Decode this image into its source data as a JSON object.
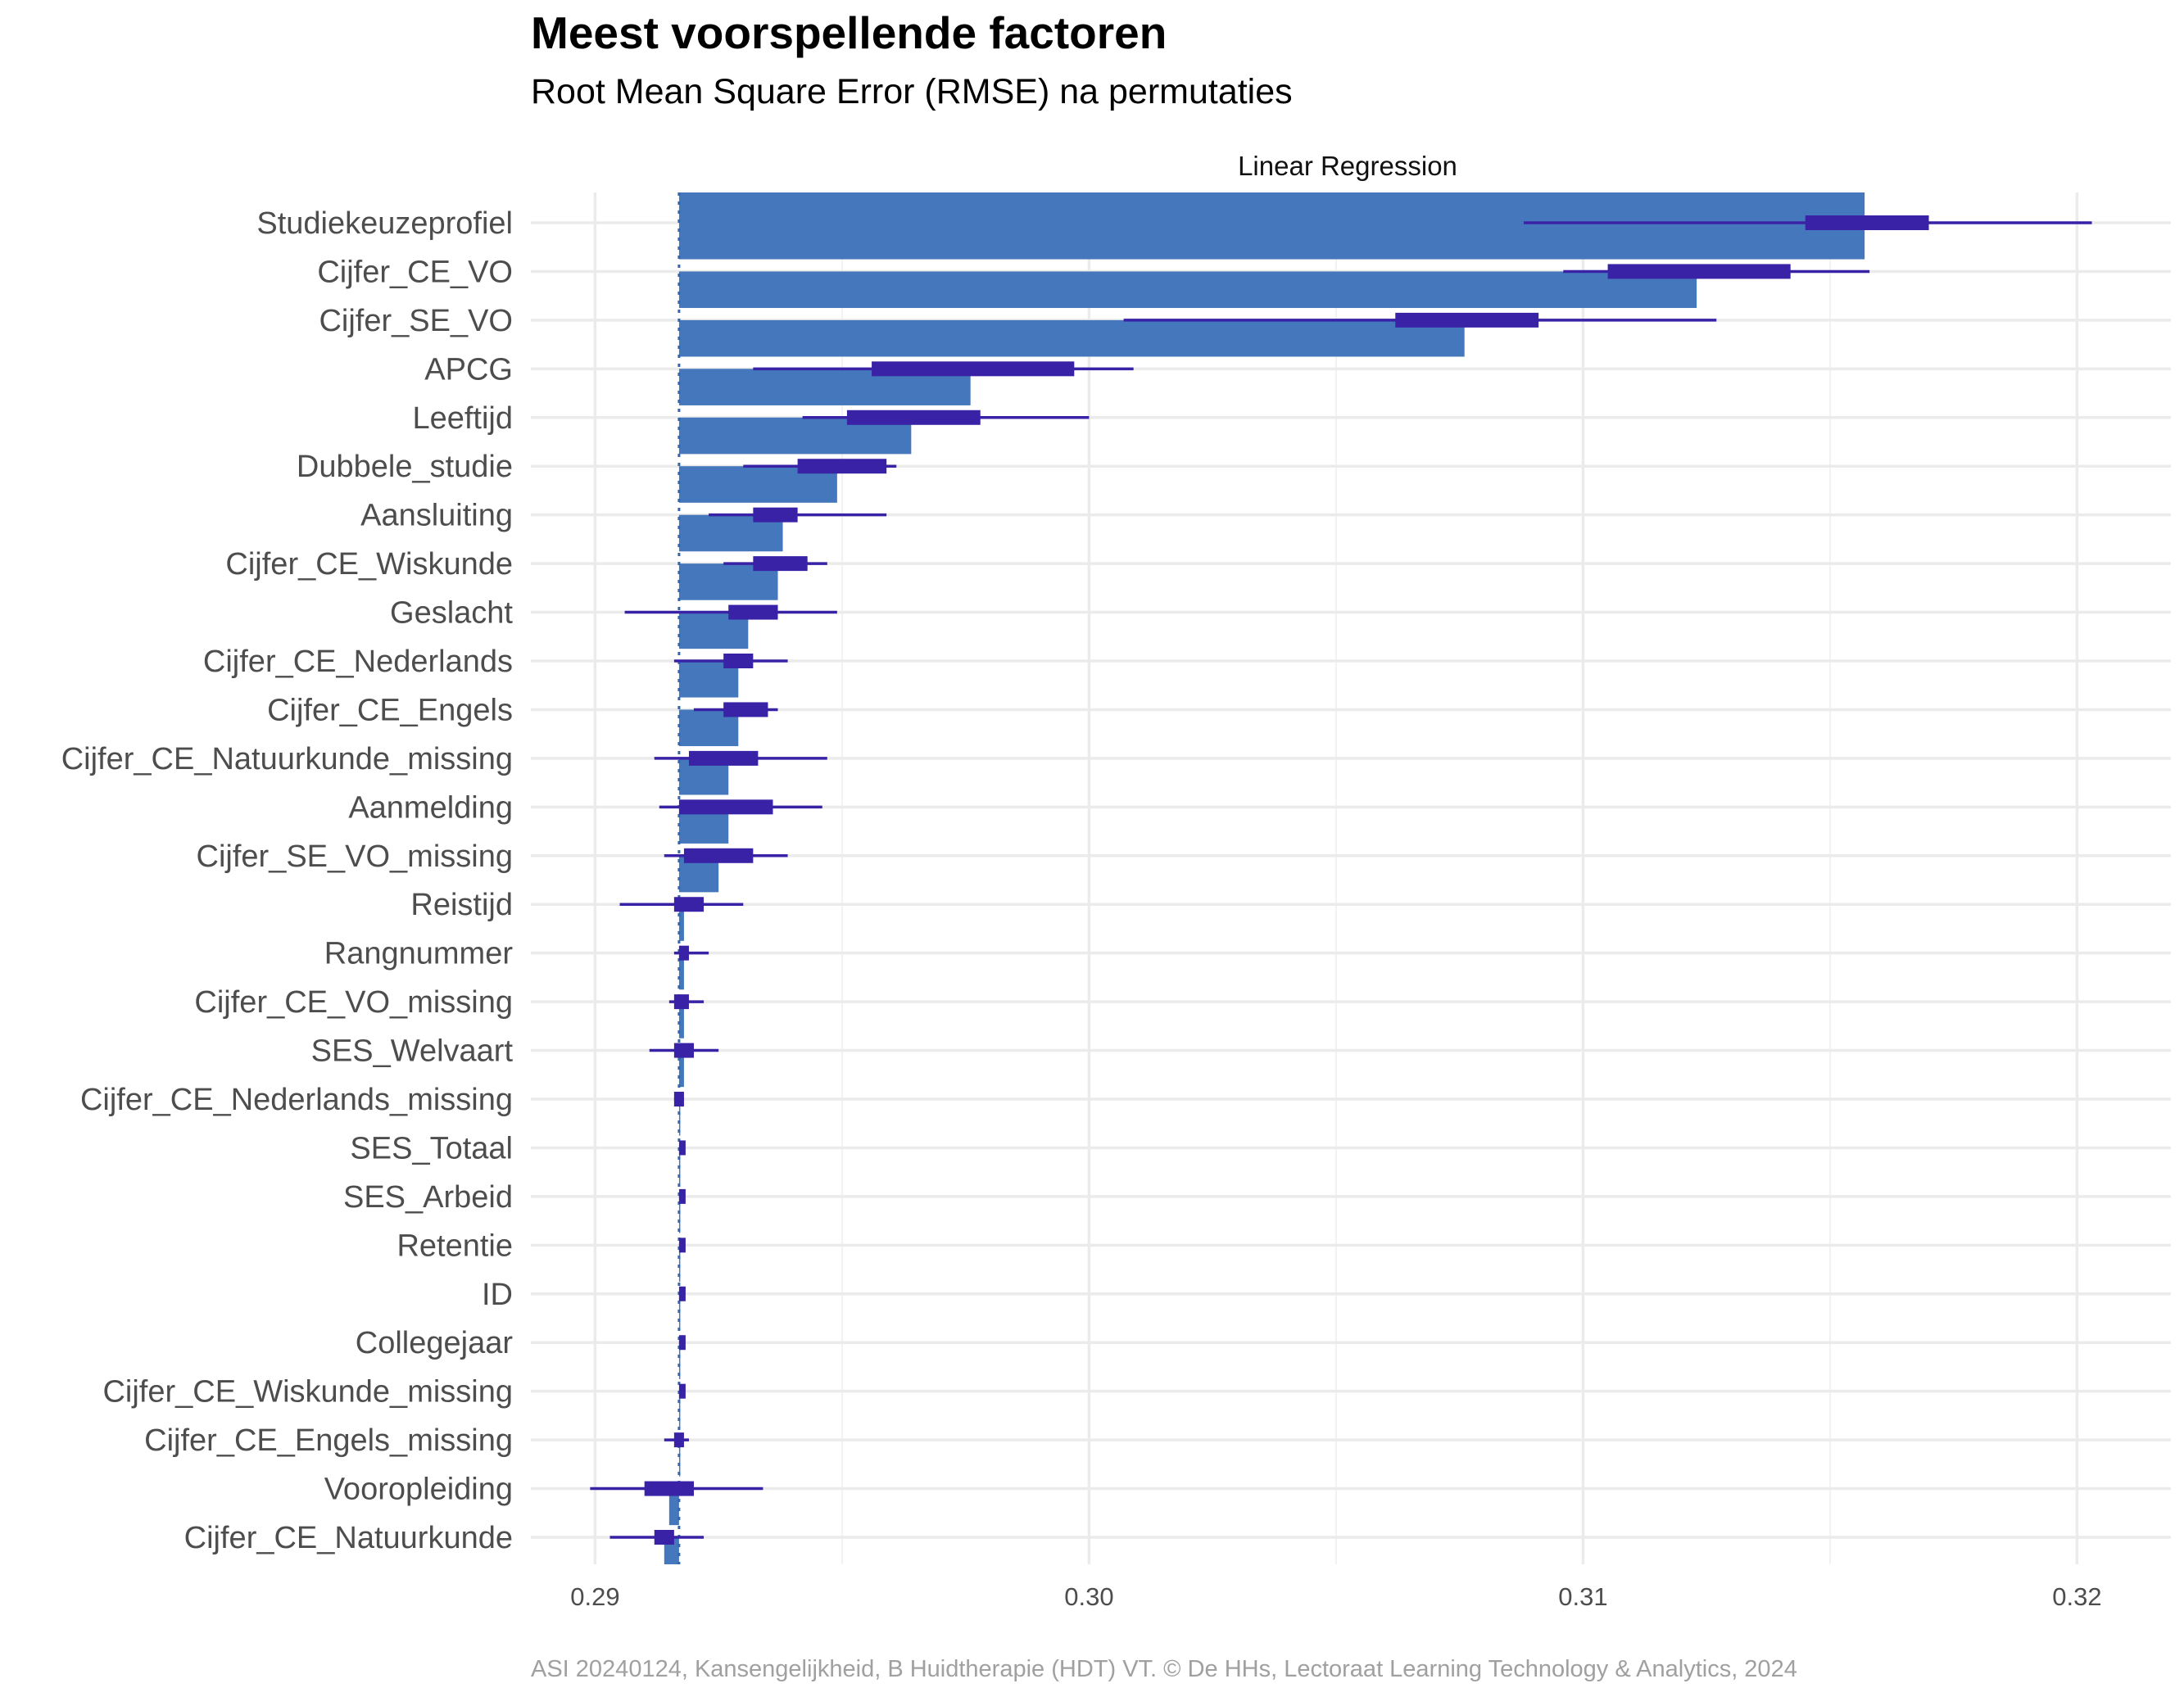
{
  "chart_data": {
    "type": "bar",
    "title": "Meest voorspellende factoren",
    "subtitle": "Root Mean Square Error (RMSE) na permutaties",
    "facet": "Linear Regression",
    "caption": "ASI 20240124, Kansengelijkheid, B Huidtherapie (HDT) VT. © De HHs, Lectoraat Learning Technology & Analytics, 2024",
    "orientation": "horizontal",
    "baseline_rmse": 0.2917,
    "xlim": [
      0.2887,
      0.3219
    ],
    "xticks": [
      0.29,
      0.3,
      0.31,
      0.32
    ],
    "xtick_labels": [
      "0.29",
      "0.30",
      "0.31",
      "0.32"
    ],
    "grid": true,
    "colors": {
      "bar": "#4477BB",
      "boxplot": "#3A22A6",
      "baseline": "#4477BB"
    },
    "series": [
      {
        "label": "Studiekeuzeprofiel",
        "mean": 0.3157,
        "min": 0.3088,
        "q1": 0.3145,
        "q3": 0.317,
        "max": 0.3203
      },
      {
        "label": "Cijfer_CE_VO",
        "mean": 0.3123,
        "min": 0.3096,
        "q1": 0.3105,
        "q3": 0.3142,
        "max": 0.3158
      },
      {
        "label": "Cijfer_SE_VO",
        "mean": 0.3076,
        "min": 0.3007,
        "q1": 0.3062,
        "q3": 0.3091,
        "max": 0.3127
      },
      {
        "label": "APCG",
        "mean": 0.2976,
        "min": 0.2932,
        "q1": 0.2956,
        "q3": 0.2997,
        "max": 0.3009
      },
      {
        "label": "Leeftijd",
        "mean": 0.2964,
        "min": 0.2942,
        "q1": 0.2951,
        "q3": 0.2978,
        "max": 0.3
      },
      {
        "label": "Dubbele_studie",
        "mean": 0.2949,
        "min": 0.293,
        "q1": 0.2941,
        "q3": 0.2959,
        "max": 0.2961
      },
      {
        "label": "Aansluiting",
        "mean": 0.2938,
        "min": 0.2923,
        "q1": 0.2932,
        "q3": 0.2941,
        "max": 0.2959
      },
      {
        "label": "Cijfer_CE_Wiskunde",
        "mean": 0.2937,
        "min": 0.2926,
        "q1": 0.2932,
        "q3": 0.2943,
        "max": 0.2947
      },
      {
        "label": "Geslacht",
        "mean": 0.2931,
        "min": 0.2906,
        "q1": 0.2927,
        "q3": 0.2937,
        "max": 0.2949
      },
      {
        "label": "Cijfer_CE_Nederlands",
        "mean": 0.2929,
        "min": 0.2916,
        "q1": 0.2926,
        "q3": 0.2932,
        "max": 0.2939
      },
      {
        "label": "Cijfer_CE_Engels",
        "mean": 0.2929,
        "min": 0.292,
        "q1": 0.2926,
        "q3": 0.2935,
        "max": 0.2937
      },
      {
        "label": "Cijfer_CE_Natuurkunde_missing",
        "mean": 0.2927,
        "min": 0.2912,
        "q1": 0.2919,
        "q3": 0.2933,
        "max": 0.2947
      },
      {
        "label": "Aanmelding",
        "mean": 0.2927,
        "min": 0.2913,
        "q1": 0.2917,
        "q3": 0.2936,
        "max": 0.2946
      },
      {
        "label": "Cijfer_SE_VO_missing",
        "mean": 0.2925,
        "min": 0.2914,
        "q1": 0.2918,
        "q3": 0.2932,
        "max": 0.2939
      },
      {
        "label": "Reistijd",
        "mean": 0.2918,
        "min": 0.2905,
        "q1": 0.2916,
        "q3": 0.2922,
        "max": 0.293
      },
      {
        "label": "Rangnummer",
        "mean": 0.2918,
        "min": 0.2916,
        "q1": 0.2917,
        "q3": 0.2919,
        "max": 0.2923
      },
      {
        "label": "Cijfer_CE_VO_missing",
        "mean": 0.2918,
        "min": 0.2915,
        "q1": 0.2916,
        "q3": 0.2919,
        "max": 0.2922
      },
      {
        "label": "SES_Welvaart",
        "mean": 0.2918,
        "min": 0.2911,
        "q1": 0.2916,
        "q3": 0.292,
        "max": 0.2925
      },
      {
        "label": "Cijfer_CE_Nederlands_missing",
        "mean": 0.2917,
        "min": 0.2916,
        "q1": 0.2916,
        "q3": 0.2918,
        "max": 0.2918
      },
      {
        "label": "SES_Totaal",
        "mean": 0.2917,
        "min": 0.2917,
        "q1": 0.2917,
        "q3": 0.2918,
        "max": 0.2918
      },
      {
        "label": "SES_Arbeid",
        "mean": 0.2917,
        "min": 0.2917,
        "q1": 0.2917,
        "q3": 0.2918,
        "max": 0.2918
      },
      {
        "label": "Retentie",
        "mean": 0.2917,
        "min": 0.2917,
        "q1": 0.2917,
        "q3": 0.2918,
        "max": 0.2918
      },
      {
        "label": "ID",
        "mean": 0.2917,
        "min": 0.2917,
        "q1": 0.2917,
        "q3": 0.2918,
        "max": 0.2918
      },
      {
        "label": "Collegejaar",
        "mean": 0.2917,
        "min": 0.2917,
        "q1": 0.2917,
        "q3": 0.2918,
        "max": 0.2918
      },
      {
        "label": "Cijfer_CE_Wiskunde_missing",
        "mean": 0.2917,
        "min": 0.2917,
        "q1": 0.2917,
        "q3": 0.2918,
        "max": 0.2918
      },
      {
        "label": "Cijfer_CE_Engels_missing",
        "mean": 0.2917,
        "min": 0.2914,
        "q1": 0.2916,
        "q3": 0.2918,
        "max": 0.2919
      },
      {
        "label": "Vooropleiding",
        "mean": 0.2915,
        "min": 0.2899,
        "q1": 0.291,
        "q3": 0.292,
        "max": 0.2934
      },
      {
        "label": "Cijfer_CE_Natuurkunde",
        "mean": 0.2914,
        "min": 0.2903,
        "q1": 0.2912,
        "q3": 0.2916,
        "max": 0.2922
      }
    ]
  }
}
